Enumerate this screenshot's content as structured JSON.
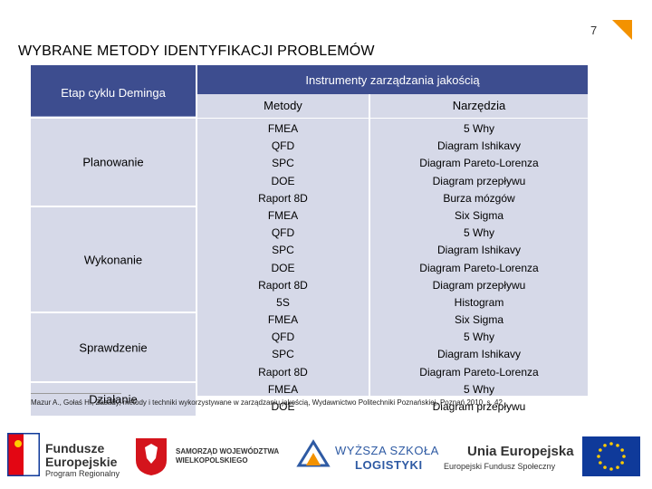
{
  "page_number": "7",
  "title": "WYBRANE METODY IDENTYFIKACJI PROBLEMÓW",
  "table": {
    "header_left": "Etap cyklu Deminga",
    "header_right": "Instrumenty zarządzania jakością",
    "col_metody": "Metody",
    "col_narzedzia": "Narzędzia",
    "stages": [
      "Planowanie",
      "Wykonanie",
      "Sprawdzenie",
      "Działanie"
    ],
    "metody": [
      "FMEA",
      "QFD",
      "SPC",
      "DOE",
      "Raport 8D",
      "FMEA",
      "QFD",
      "SPC",
      "DOE",
      "Raport 8D",
      "5S",
      "FMEA",
      "QFD",
      "SPC",
      "Raport 8D",
      "FMEA",
      "DOE"
    ],
    "narzedzia": [
      "5 Why",
      "Diagram Ishikavy",
      "Diagram Pareto-Lorenza",
      "Diagram przepływu",
      "Burza mózgów",
      "Six Sigma",
      "5 Why",
      "Diagram Ishikavy",
      "Diagram Pareto-Lorenza",
      "Diagram przepływu",
      "Histogram",
      "Six Sigma",
      "5 Why",
      "Diagram Ishikavy",
      "Diagram Pareto-Lorenza",
      "5 Why",
      "Diagram przepływu"
    ]
  },
  "source": "Mazur A., Gołaś H., Zasady, metody i techniki wykorzystywane w zarządzaniu jakością, Wydawnictwo Politechniki Poznańskiej, Poznań 2010, s. 42",
  "logos": {
    "fe_line1": "Fundusze",
    "fe_line2": "Europejskie",
    "fe_sub": "Program Regionalny",
    "samorzad_line1": "SAMORZĄD WOJEWÓDZTWA",
    "samorzad_line2": "WIELKOPOLSKIEGO",
    "wsl_line1": "WYŻSZA SZKOŁA",
    "wsl_line2": "LOGISTYKI",
    "ue_title": "Unia Europejska",
    "ue_sub": "Europejski Fundusz Społeczny"
  },
  "colors": {
    "header": "#3d4d8f",
    "cell": "#d6d9e8",
    "accent": "#f39200",
    "eu_blue": "#0f3a9a",
    "eu_star": "#ffcc00"
  }
}
